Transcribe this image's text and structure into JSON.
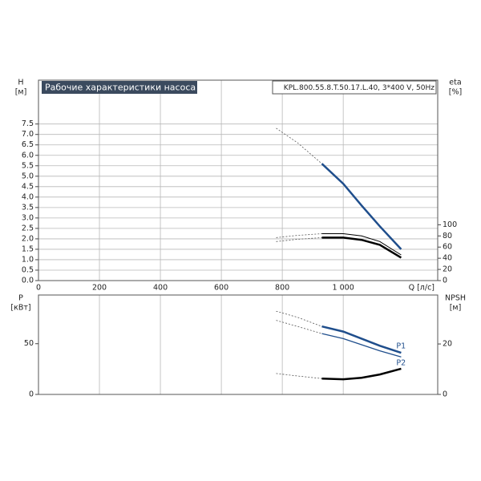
{
  "chart_data": [
    {
      "type": "line",
      "title": "Рабочие характеристики насоса",
      "subtitle": "KPL.800.55.8.T.50.17.L.40, 3*400 V, 50Hz",
      "y_label": "H",
      "y_unit": "[м]",
      "y2_label": "eta",
      "y2_unit": "[%]",
      "x_label": "Q [л/с]",
      "x": [
        780,
        850,
        930,
        1000,
        1060,
        1120,
        1190
      ],
      "xlim": [
        0,
        1310
      ],
      "xticks": [
        0,
        200,
        400,
        600,
        800,
        {
          "value": 1000,
          "label": "1 000"
        }
      ],
      "show_xtick_labels": true,
      "ylim": [
        0,
        9.6
      ],
      "yticks": [
        {
          "value": 0,
          "label": "0.0"
        },
        0.5,
        {
          "value": 1,
          "label": "1.0"
        },
        1.5,
        {
          "value": 2,
          "label": "2.0"
        },
        2.5,
        {
          "value": 3,
          "label": "3.0"
        },
        3.5,
        {
          "value": 4,
          "label": "4.0"
        },
        4.5,
        {
          "value": 5,
          "label": "5.0"
        },
        5.5,
        {
          "value": 6,
          "label": "6.0"
        },
        6.5,
        {
          "value": 7,
          "label": "7.0"
        },
        7.5
      ],
      "y2lim": [
        0,
        359
      ],
      "y2ticks": [
        0,
        20,
        40,
        60,
        80,
        100
      ],
      "grid": true,
      "series": [
        {
          "color": "#1f4e8c",
          "width": 2.5,
          "axis": "y",
          "dashed_values": [
            7.3,
            6.6,
            5.6,
            null,
            null,
            null,
            null
          ],
          "values": [
            null,
            null,
            5.6,
            4.64,
            3.6,
            2.6,
            1.5
          ]
        },
        {
          "color": "#000000",
          "width": 1,
          "axis": "y2",
          "dashed_values": [
            77,
            81,
            84,
            null,
            null,
            null,
            null
          ],
          "values": [
            null,
            null,
            84,
            84,
            80,
            70,
            46
          ]
        },
        {
          "color": "#000000",
          "width": 2.5,
          "axis": "y2",
          "dashed_values": [
            70,
            74,
            77,
            null,
            null,
            null,
            null
          ],
          "values": [
            null,
            null,
            77,
            77,
            73,
            64,
            41
          ]
        }
      ]
    },
    {
      "type": "line",
      "y_label": "P",
      "y_unit": "[кВт]",
      "y2_label": "NPSH",
      "y2_unit": "[м]",
      "x": [
        780,
        850,
        930,
        1000,
        1060,
        1120,
        1190
      ],
      "xlim": [
        0,
        1310
      ],
      "xticks": [
        0,
        200,
        400,
        600,
        800,
        1000
      ],
      "show_xtick_labels": false,
      "ylim": [
        0,
        98
      ],
      "yticks": [
        0,
        50
      ],
      "y2lim": [
        0,
        39.4
      ],
      "y2ticks": [
        0,
        20
      ],
      "grid": true,
      "series": [
        {
          "name": "P1",
          "color": "#1f4e8c",
          "width": 2.5,
          "axis": "y",
          "dashed_values": [
            82,
            76,
            67,
            null,
            null,
            null,
            null
          ],
          "values": [
            null,
            null,
            67,
            62,
            55,
            48,
            41
          ]
        },
        {
          "name": "P2",
          "color": "#1f4e8c",
          "width": 1.3,
          "axis": "y",
          "dashed_values": [
            73,
            67,
            60,
            null,
            null,
            null,
            null
          ],
          "values": [
            null,
            null,
            60,
            55,
            49,
            43,
            37
          ]
        },
        {
          "color": "#000000",
          "width": 2.5,
          "axis": "y2",
          "dashed_values": [
            8.3,
            7.3,
            6.3,
            null,
            null,
            null,
            null
          ],
          "values": [
            null,
            null,
            6.3,
            6.0,
            6.6,
            7.9,
            10.2
          ]
        }
      ]
    }
  ]
}
